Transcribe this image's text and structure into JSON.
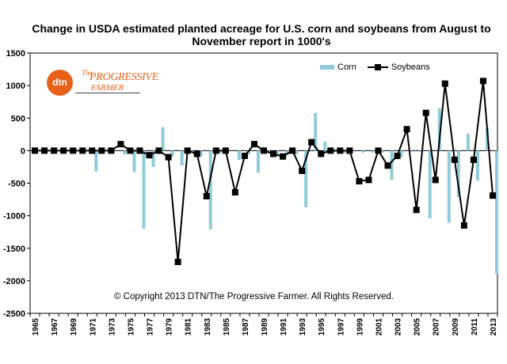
{
  "chart_data": {
    "type": "bar+line",
    "title": "Change in USDA estimated planted acreage for U.S. corn and soybeans from August to November report in 1000's",
    "xlabel": "",
    "ylabel": "",
    "ylim": [
      -2500,
      1500
    ],
    "yticks": [
      1500,
      1000,
      500,
      0,
      -500,
      -1000,
      -1500,
      -2000,
      -2500
    ],
    "x_tick_labels": [
      "1965",
      "1967",
      "1969",
      "1971",
      "1973",
      "1975",
      "1977",
      "1979",
      "1981",
      "1983",
      "1985",
      "1987",
      "1989",
      "1991",
      "1993",
      "1995",
      "1997",
      "1999",
      "2001",
      "2003",
      "2005",
      "2007",
      "2009",
      "2011",
      "2013"
    ],
    "years": [
      1965,
      1966,
      1967,
      1968,
      1969,
      1970,
      1971,
      1972,
      1973,
      1974,
      1975,
      1976,
      1977,
      1978,
      1979,
      1980,
      1981,
      1982,
      1983,
      1984,
      1985,
      1986,
      1987,
      1988,
      1989,
      1990,
      1991,
      1992,
      1993,
      1994,
      1995,
      1996,
      1997,
      1998,
      1999,
      2000,
      2001,
      2002,
      2003,
      2004,
      2005,
      2006,
      2007,
      2008,
      2009,
      2010,
      2011,
      2012,
      2013
    ],
    "series": [
      {
        "name": "Corn",
        "kind": "bar",
        "color": "#8fcbd9",
        "values": [
          0,
          0,
          0,
          0,
          0,
          0,
          -320,
          0,
          0,
          -60,
          -330,
          -1200,
          -250,
          360,
          -90,
          -230,
          -30,
          -90,
          -1210,
          -40,
          0,
          -140,
          -60,
          -340,
          -30,
          -70,
          -60,
          -60,
          -870,
          580,
          140,
          -20,
          -40,
          0,
          -30,
          -30,
          -30,
          -450,
          -100,
          -20,
          -20,
          -1040,
          650,
          -1110,
          -710,
          260,
          -460,
          350,
          -1900
        ]
      },
      {
        "name": "Soybeans",
        "kind": "line",
        "color": "#000000",
        "values": [
          0,
          0,
          0,
          0,
          0,
          0,
          0,
          0,
          0,
          100,
          0,
          0,
          -70,
          0,
          -100,
          -1710,
          0,
          -50,
          -700,
          0,
          0,
          -640,
          -80,
          100,
          0,
          -50,
          -90,
          0,
          -310,
          130,
          -50,
          0,
          0,
          0,
          -470,
          -450,
          0,
          -230,
          -80,
          330,
          -910,
          580,
          -450,
          1030,
          -140,
          -1150,
          -140,
          1070,
          -690
        ]
      }
    ],
    "legend": {
      "position": "top-right",
      "items": [
        "Corn",
        "Soybeans"
      ]
    },
    "grid": false,
    "annotation": "© Copyright 2013 DTN/The Progressive Farmer. All Rights Reserved."
  },
  "logo": {
    "circle_text": "dtn",
    "the": "The",
    "name": "PROGRESSIVE",
    "sub": "FARMER"
  }
}
